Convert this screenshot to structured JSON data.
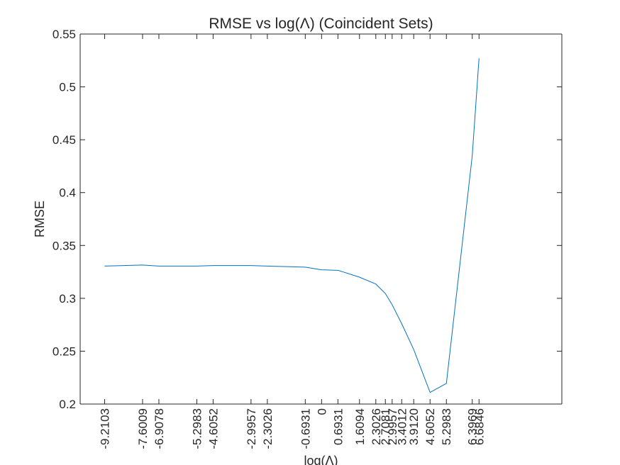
{
  "chart_data": {
    "type": "line",
    "title": "RMSE vs log(Λ) (Coincident Sets)",
    "xlabel": "log(Λ)",
    "ylabel": "RMSE",
    "xlim": [
      -10.25,
      10.2
    ],
    "ylim": [
      0.2,
      0.55
    ],
    "grid": false,
    "xticks": [
      -9.2103,
      -7.6009,
      -6.9078,
      -5.2983,
      -4.6052,
      -2.9957,
      -2.3026,
      -0.6931,
      0,
      0.6931,
      1.6094,
      2.3026,
      2.7081,
      2.9957,
      3.4012,
      3.912,
      4.6052,
      5.2983,
      6.3969,
      6.6846
    ],
    "xticklabels": [
      "-9.2103",
      "-7.6009",
      "-6.9078",
      "-5.2983",
      "-4.6052",
      "-2.9957",
      "-2.3026",
      "-0.6931",
      "0",
      "0.6931",
      "1.6094",
      "2.3026",
      "2.7081",
      "2.9957",
      "3.4012",
      "3.9120",
      "4.6052",
      "5.2983",
      "6.3969",
      "6.6846"
    ],
    "yticks": [
      0.2,
      0.25,
      0.3,
      0.35,
      0.4,
      0.45,
      0.5,
      0.55
    ],
    "yticklabels": [
      "0.2",
      "0.25",
      "0.3",
      "0.35",
      "0.4",
      "0.45",
      "0.5",
      "0.55"
    ],
    "series": [
      {
        "color": "#0072bd",
        "x": [
          -9.2103,
          -7.6009,
          -6.9078,
          -5.2983,
          -4.6052,
          -2.9957,
          -2.3026,
          -0.6931,
          0,
          0.6931,
          1.6094,
          2.3026,
          2.7081,
          2.9957,
          3.4012,
          3.912,
          4.6052,
          5.2983,
          6.3969,
          6.6846
        ],
        "y": [
          0.3305,
          0.3315,
          0.3305,
          0.3305,
          0.331,
          0.331,
          0.3305,
          0.3295,
          0.327,
          0.3265,
          0.32,
          0.3135,
          0.3045,
          0.294,
          0.276,
          0.2515,
          0.211,
          0.2195,
          0.435,
          0.527
        ]
      }
    ]
  }
}
